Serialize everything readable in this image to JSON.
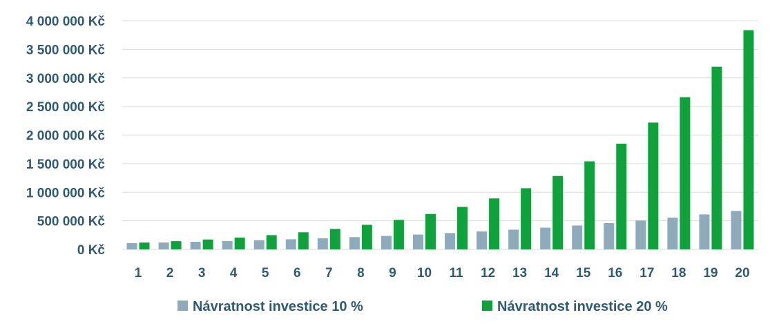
{
  "chart_data": {
    "type": "bar",
    "categories": [
      "1",
      "2",
      "3",
      "4",
      "5",
      "6",
      "7",
      "8",
      "9",
      "10",
      "11",
      "12",
      "13",
      "14",
      "15",
      "16",
      "17",
      "18",
      "19",
      "20"
    ],
    "series": [
      {
        "name": "Návratnost investice 10 %",
        "color": "#8faabb",
        "values": [
          110000,
          121000,
          133100,
          146410,
          161051,
          177156,
          194872,
          214359,
          235795,
          259374,
          285312,
          313843,
          345227,
          379750,
          417725,
          459497,
          505447,
          555992,
          611591,
          672750
        ]
      },
      {
        "name": "Návratnost investice 20 %",
        "color": "#10a13c",
        "values": [
          120000,
          144000,
          172800,
          207360,
          248832,
          298598,
          358318,
          429982,
          515978,
          619174,
          743008,
          891610,
          1069932,
          1283918,
          1540702,
          1848843,
          2218611,
          2662333,
          3194800,
          3833760
        ]
      }
    ],
    "ylim": [
      0,
      4000000
    ],
    "yticks": [
      {
        "value": 0,
        "label": "0 Kč"
      },
      {
        "value": 500000,
        "label": "500 000 Kč"
      },
      {
        "value": 1000000,
        "label": "1 000 000 Kč"
      },
      {
        "value": 1500000,
        "label": "1 500 000 Kč"
      },
      {
        "value": 2000000,
        "label": "2 000 000 Kč"
      },
      {
        "value": 2500000,
        "label": "2 500 000 Kč"
      },
      {
        "value": 3000000,
        "label": "3 000 000 Kč"
      },
      {
        "value": 3500000,
        "label": "3 500 000 Kč"
      },
      {
        "value": 4000000,
        "label": "4 000 000 Kč"
      }
    ],
    "grid": true,
    "legend_position": "bottom",
    "label_color": "#2f5a73"
  }
}
